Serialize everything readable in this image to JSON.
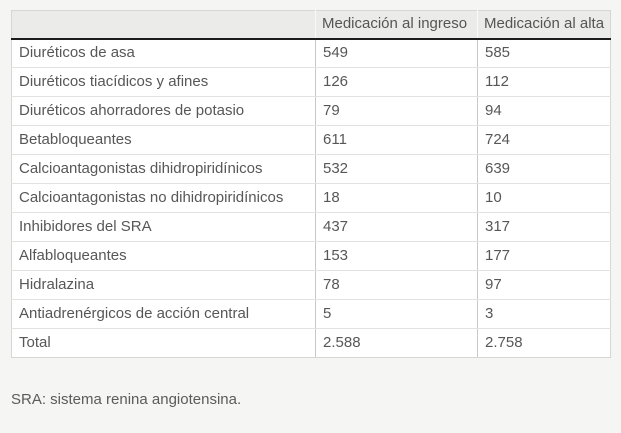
{
  "table": {
    "columns": [
      "",
      "Medicación al ingreso",
      "Medicación al alta"
    ],
    "rows": [
      {
        "label": "Diuréticos de asa",
        "ingreso": "549",
        "alta": "585"
      },
      {
        "label": "Diuréticos tiacídicos y afines",
        "ingreso": "126",
        "alta": "112"
      },
      {
        "label": "Diuréticos ahorradores de potasio",
        "ingreso": "79",
        "alta": "94"
      },
      {
        "label": "Betabloqueantes",
        "ingreso": "611",
        "alta": "724"
      },
      {
        "label": "Calcioantagonistas dihidropiridínicos",
        "ingreso": "532",
        "alta": "639"
      },
      {
        "label": "Calcioantagonistas no dihidropiridínicos",
        "ingreso": "18",
        "alta": "10"
      },
      {
        "label": "Inhibidores del SRA",
        "ingreso": "437",
        "alta": "317"
      },
      {
        "label": "Alfabloqueantes",
        "ingreso": "153",
        "alta": "177"
      },
      {
        "label": "Hidralazina",
        "ingreso": "78",
        "alta": "97"
      },
      {
        "label": "Antiadrenérgicos de acción central",
        "ingreso": "5",
        "alta": "3"
      },
      {
        "label": "Total",
        "ingreso": "2.588",
        "alta": "2.758"
      }
    ]
  },
  "footnote": "SRA: sistema renina angiotensina.",
  "colors": {
    "page_background": "#f5f5f3",
    "header_background": "#ebebe9",
    "header_underline": "#1c1c1c",
    "cell_background": "#ffffff",
    "text": "#575757",
    "grid_line": "#c9c9c7",
    "row_line": "#e2e2e0"
  }
}
